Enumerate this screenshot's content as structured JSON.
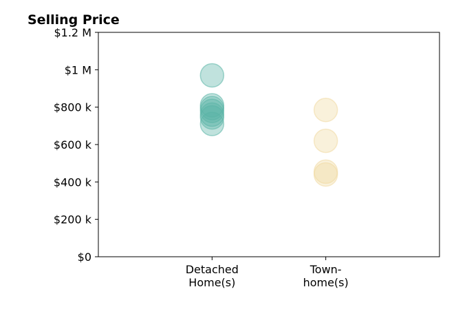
{
  "chart_data": {
    "type": "scatter",
    "title": "Selling Price",
    "categories": [
      "Detached\nHome(s)",
      "Town-\nhome(s)"
    ],
    "x_range": [
      -1,
      2
    ],
    "ylim": [
      0,
      1200000
    ],
    "yticks": [
      {
        "value": 0,
        "label": "$0"
      },
      {
        "value": 200000,
        "label": "$200 k"
      },
      {
        "value": 400000,
        "label": "$400 k"
      },
      {
        "value": 600000,
        "label": "$600 k"
      },
      {
        "value": 800000,
        "label": "$800 k"
      },
      {
        "value": 1000000,
        "label": "$1 M"
      },
      {
        "value": 1200000,
        "label": "$1.2 M"
      }
    ],
    "grid": false,
    "series": [
      {
        "category_index": 0,
        "color": "#5ab4a6",
        "values": [
          970000,
          810000,
          795000,
          780000,
          760000,
          745000,
          710000
        ]
      },
      {
        "category_index": 1,
        "color": "#f0d9a0",
        "values": [
          785000,
          620000,
          455000,
          440000
        ]
      }
    ]
  }
}
